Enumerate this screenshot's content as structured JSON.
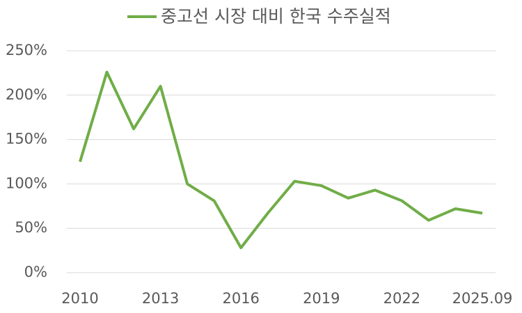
{
  "chart_data": {
    "type": "line",
    "categories": [
      "2010",
      null,
      null,
      "2013",
      null,
      null,
      "2016",
      null,
      null,
      "2019",
      null,
      null,
      "2022",
      null,
      null,
      "2025.09"
    ],
    "series": [
      {
        "name": "중고선 시장 대비 한국 수주실적",
        "color": "#70ad47",
        "values": [
          125,
          226,
          162,
          210,
          100,
          81,
          28,
          67,
          103,
          98,
          84,
          93,
          81,
          59,
          72,
          67
        ]
      }
    ],
    "ylim": [
      0,
      250
    ],
    "yticks": [
      {
        "value": 0,
        "label": "0%"
      },
      {
        "value": 50,
        "label": "50%"
      },
      {
        "value": 100,
        "label": "100%"
      },
      {
        "value": 150,
        "label": "150%"
      },
      {
        "value": 200,
        "label": "200%"
      },
      {
        "value": 250,
        "label": "250%"
      }
    ],
    "grid": true,
    "legend": "top"
  }
}
